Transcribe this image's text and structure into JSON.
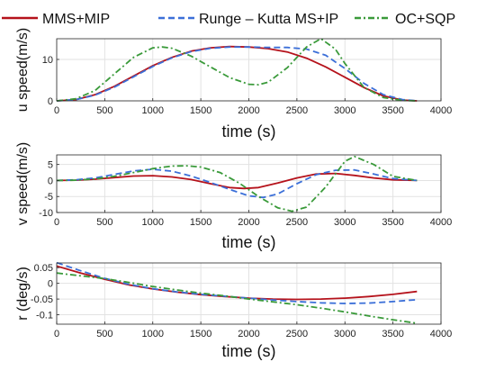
{
  "legend": {
    "placement": "top",
    "entries": [
      {
        "label": "MMS+MIP",
        "color": "#b5121b",
        "dash": "solid"
      },
      {
        "label": "Runge – Kutta MS+IP",
        "color": "#3b6fd8",
        "dash": "dashed"
      },
      {
        "label": "OC+SQP",
        "color": "#3a9a3a",
        "dash": "dashdot"
      }
    ]
  },
  "chart_data": [
    {
      "type": "line",
      "xlabel": "time (s)",
      "ylabel": "u speed(m/s)",
      "xlim": [
        0,
        4000
      ],
      "ylim": [
        0,
        15
      ],
      "xticks": [
        0,
        500,
        1000,
        1500,
        2000,
        2500,
        3000,
        3500,
        4000
      ],
      "yticks": [
        0,
        10
      ],
      "grid": true,
      "series": [
        {
          "name": "MMS+MIP",
          "color": "#b5121b",
          "dash": "solid",
          "x": [
            0,
            200,
            400,
            600,
            800,
            1000,
            1200,
            1400,
            1600,
            1800,
            2000,
            2200,
            2400,
            2600,
            2800,
            3000,
            3200,
            3400,
            3600,
            3750
          ],
          "y": [
            0,
            0.3,
            1.5,
            3.5,
            6,
            8.5,
            10.5,
            12,
            12.8,
            13.1,
            13.0,
            12.6,
            11.8,
            10.3,
            8.2,
            5.7,
            3.2,
            1.2,
            0.2,
            0
          ]
        },
        {
          "name": "Runge – Kutta MS+IP",
          "color": "#3b6fd8",
          "dash": "dashed",
          "x": [
            0,
            200,
            400,
            600,
            800,
            1000,
            1200,
            1400,
            1600,
            1800,
            2000,
            2200,
            2400,
            2600,
            2800,
            3000,
            3200,
            3400,
            3600,
            3750
          ],
          "y": [
            0,
            0.3,
            1.4,
            3.3,
            5.8,
            8.3,
            10.4,
            11.9,
            12.7,
            13.0,
            13.0,
            12.9,
            12.9,
            12.5,
            11.0,
            7.8,
            4.2,
            1.5,
            0.3,
            0
          ]
        },
        {
          "name": "OC+SQP",
          "color": "#3a9a3a",
          "dash": "dashdot",
          "x": [
            0,
            200,
            400,
            600,
            800,
            1000,
            1100,
            1200,
            1400,
            1600,
            1800,
            2000,
            2100,
            2200,
            2400,
            2600,
            2750,
            2900,
            3000,
            3200,
            3400,
            3600,
            3750
          ],
          "y": [
            0,
            0.5,
            2.5,
            6.5,
            10.5,
            12.8,
            13.0,
            12.7,
            10.8,
            8.2,
            5.6,
            4.0,
            3.9,
            4.5,
            8.0,
            13.0,
            15.0,
            12.5,
            9.0,
            3.2,
            0.8,
            0.1,
            0
          ]
        }
      ]
    },
    {
      "type": "line",
      "xlabel": "time (s)",
      "ylabel": "v speed(m/s)",
      "xlim": [
        0,
        4000
      ],
      "ylim": [
        -10,
        8
      ],
      "xticks": [
        0,
        500,
        1000,
        1500,
        2000,
        2500,
        3000,
        3500,
        4000
      ],
      "yticks": [
        -10,
        -5,
        0,
        5
      ],
      "grid": true,
      "series": [
        {
          "name": "MMS+MIP",
          "color": "#b5121b",
          "dash": "solid",
          "x": [
            0,
            200,
            400,
            600,
            800,
            1000,
            1200,
            1400,
            1600,
            1800,
            1950,
            2100,
            2300,
            2500,
            2700,
            2900,
            3100,
            3300,
            3500,
            3750
          ],
          "y": [
            0,
            0.1,
            0.4,
            0.9,
            1.4,
            1.5,
            1.1,
            0.3,
            -1.0,
            -2.2,
            -2.5,
            -2.2,
            -0.8,
            0.8,
            2.0,
            2.2,
            1.6,
            0.8,
            0.2,
            0
          ]
        },
        {
          "name": "Runge – Kutta MS+IP",
          "color": "#3b6fd8",
          "dash": "dashed",
          "x": [
            0,
            200,
            400,
            600,
            800,
            1000,
            1200,
            1400,
            1600,
            1800,
            2000,
            2150,
            2300,
            2500,
            2700,
            2900,
            3100,
            3300,
            3500,
            3750
          ],
          "y": [
            0,
            0.2,
            0.8,
            1.9,
            3.0,
            3.5,
            2.9,
            1.4,
            -0.6,
            -2.8,
            -4.8,
            -5.3,
            -4.2,
            -1.0,
            1.8,
            3.2,
            3.3,
            2.0,
            0.6,
            0
          ]
        },
        {
          "name": "OC+SQP",
          "color": "#3a9a3a",
          "dash": "dashdot",
          "x": [
            0,
            200,
            400,
            600,
            800,
            1000,
            1200,
            1350,
            1500,
            1700,
            1900,
            2100,
            2300,
            2450,
            2600,
            2800,
            3000,
            3100,
            3300,
            3500,
            3750
          ],
          "y": [
            0,
            0.1,
            0.5,
            1.3,
            2.5,
            3.7,
            4.5,
            4.6,
            4.2,
            2.5,
            -0.8,
            -5.0,
            -8.5,
            -9.6,
            -8.3,
            -2.0,
            6.0,
            7.5,
            5.0,
            1.3,
            0
          ]
        }
      ]
    },
    {
      "type": "line",
      "xlabel": "time (s)",
      "ylabel": "r (deg/s)",
      "xlim": [
        0,
        4000
      ],
      "ylim": [
        -0.13,
        0.065
      ],
      "xticks": [
        0,
        500,
        1000,
        1500,
        2000,
        2500,
        3000,
        3500,
        4000
      ],
      "yticks": [
        0.05,
        0,
        -0.05,
        -0.1
      ],
      "grid": true,
      "series": [
        {
          "name": "MMS+MIP",
          "color": "#b5121b",
          "dash": "solid",
          "x": [
            0,
            250,
            500,
            750,
            1000,
            1250,
            1500,
            1750,
            2000,
            2250,
            2500,
            2750,
            3000,
            3250,
            3500,
            3750
          ],
          "y": [
            0.055,
            0.033,
            0.013,
            -0.005,
            -0.018,
            -0.028,
            -0.036,
            -0.042,
            -0.047,
            -0.05,
            -0.051,
            -0.05,
            -0.047,
            -0.042,
            -0.035,
            -0.026
          ]
        },
        {
          "name": "Runge – Kutta MS+IP",
          "color": "#3b6fd8",
          "dash": "dashed",
          "x": [
            0,
            250,
            500,
            750,
            1000,
            1250,
            1500,
            1750,
            2000,
            2250,
            2500,
            2750,
            3000,
            3250,
            3500,
            3750
          ],
          "y": [
            0.066,
            0.04,
            0.016,
            -0.003,
            -0.017,
            -0.027,
            -0.035,
            -0.041,
            -0.047,
            -0.053,
            -0.058,
            -0.062,
            -0.064,
            -0.063,
            -0.058,
            -0.052
          ]
        },
        {
          "name": "OC+SQP",
          "color": "#3a9a3a",
          "dash": "dashdot",
          "x": [
            0,
            250,
            500,
            750,
            1000,
            1250,
            1500,
            1750,
            2000,
            2250,
            2500,
            2750,
            3000,
            3250,
            3500,
            3750
          ],
          "y": [
            0.033,
            0.024,
            0.015,
            0.003,
            -0.01,
            -0.021,
            -0.031,
            -0.04,
            -0.05,
            -0.059,
            -0.068,
            -0.079,
            -0.091,
            -0.104,
            -0.116,
            -0.127
          ]
        }
      ]
    }
  ]
}
